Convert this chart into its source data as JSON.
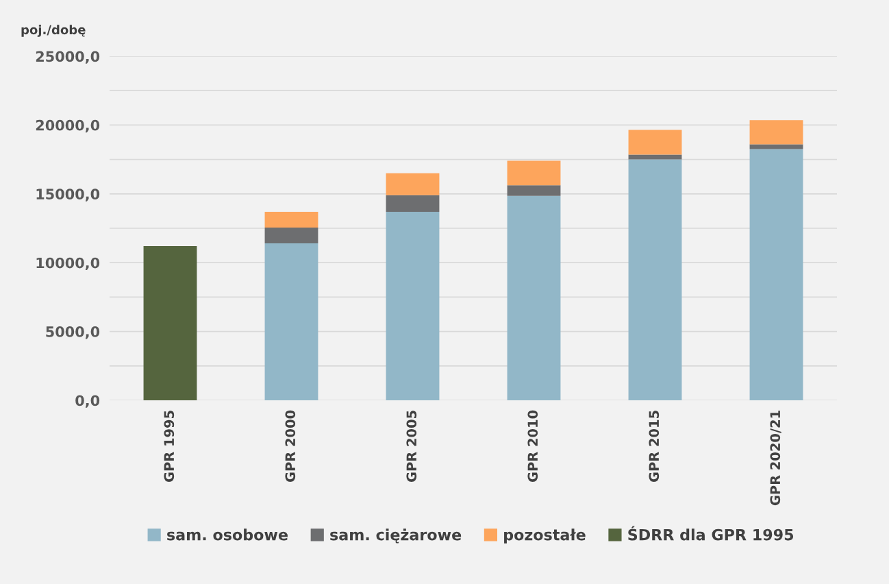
{
  "chart_data": {
    "type": "bar",
    "stacked": true,
    "ylabel": "poj./dobę",
    "categories": [
      "GPR 1995",
      "GPR 2000",
      "GPR 2005",
      "GPR 2010",
      "GPR 2015",
      "GPR 2020/21"
    ],
    "series": [
      {
        "name": "sam. osobowe",
        "color": "#92b7c8",
        "values": [
          null,
          11400,
          13700,
          14850,
          17500,
          18250
        ]
      },
      {
        "name": "sam. ciężarowe",
        "color": "#6d6e70",
        "values": [
          null,
          1150,
          1200,
          770,
          350,
          350
        ]
      },
      {
        "name": "pozostałe",
        "color": "#fda55c",
        "values": [
          null,
          1150,
          1600,
          1780,
          1800,
          1750
        ]
      },
      {
        "name": "ŚDRR dla GPR 1995",
        "color": "#55653e",
        "values": [
          11200,
          null,
          null,
          null,
          null,
          null
        ]
      }
    ],
    "ylim": [
      0,
      25000
    ],
    "yticks": [
      {
        "value": 0,
        "label": "0,0"
      },
      {
        "value": 5000,
        "label": "5000,0"
      },
      {
        "value": 10000,
        "label": "10000,0"
      },
      {
        "value": 15000,
        "label": "15000,0"
      },
      {
        "value": 20000,
        "label": "20000,0"
      },
      {
        "value": 25000,
        "label": "25000,0"
      }
    ],
    "grid": "y",
    "legend": "bottom"
  }
}
